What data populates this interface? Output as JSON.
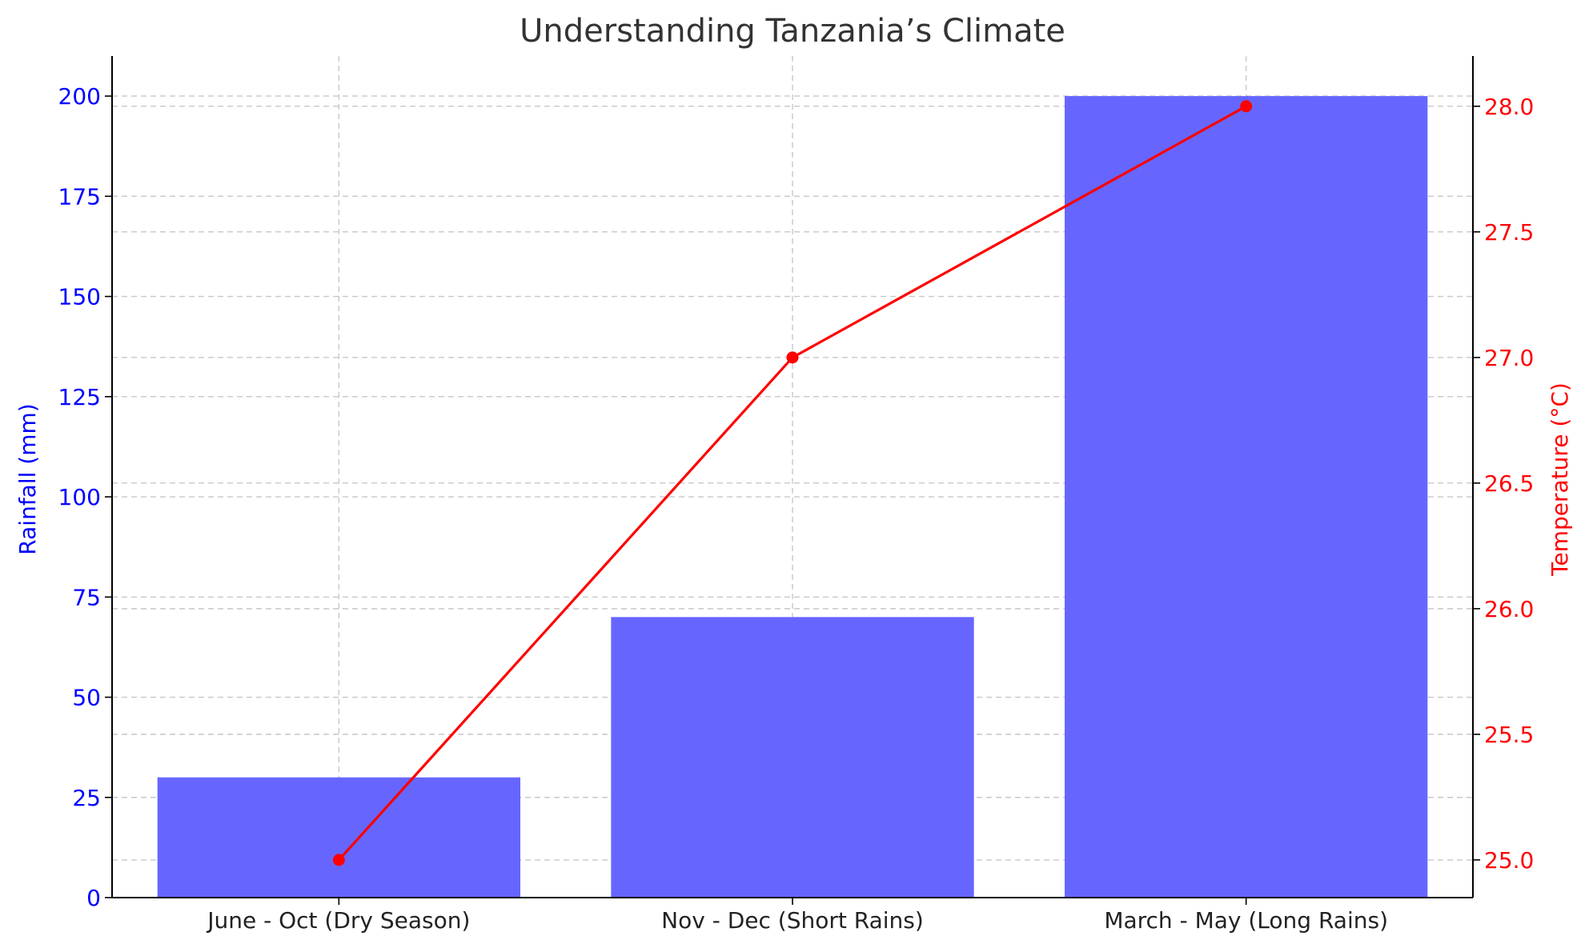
{
  "chart_data": {
    "type": "bar",
    "title": "Understanding Tanzania’s Climate",
    "categories": [
      "June - Oct (Dry Season)",
      "Nov - Dec (Short Rains)",
      "March - May (Long Rains)"
    ],
    "series": [
      {
        "name": "Rainfall (mm)",
        "type": "bar",
        "axis": "left",
        "values": [
          30,
          70,
          200
        ],
        "color": "#6666ff"
      },
      {
        "name": "Temperature (°C)",
        "type": "line",
        "axis": "right",
        "values": [
          25.0,
          27.0,
          28.0
        ],
        "color": "#ff0000",
        "marker": "circle"
      }
    ],
    "ylabel_left": "Rainfall (mm)",
    "ylabel_right": "Temperature (°C)",
    "ylim_left": [
      0,
      210
    ],
    "ylim_right": [
      24.85,
      28.2
    ],
    "yticks_left": [
      0,
      25,
      50,
      75,
      100,
      125,
      150,
      175,
      200
    ],
    "yticks_right": [
      25.0,
      25.5,
      26.0,
      26.5,
      27.0,
      27.5,
      28.0
    ],
    "grid": true,
    "left_axis_color": "#0000ff",
    "right_axis_color": "#ff0000"
  }
}
